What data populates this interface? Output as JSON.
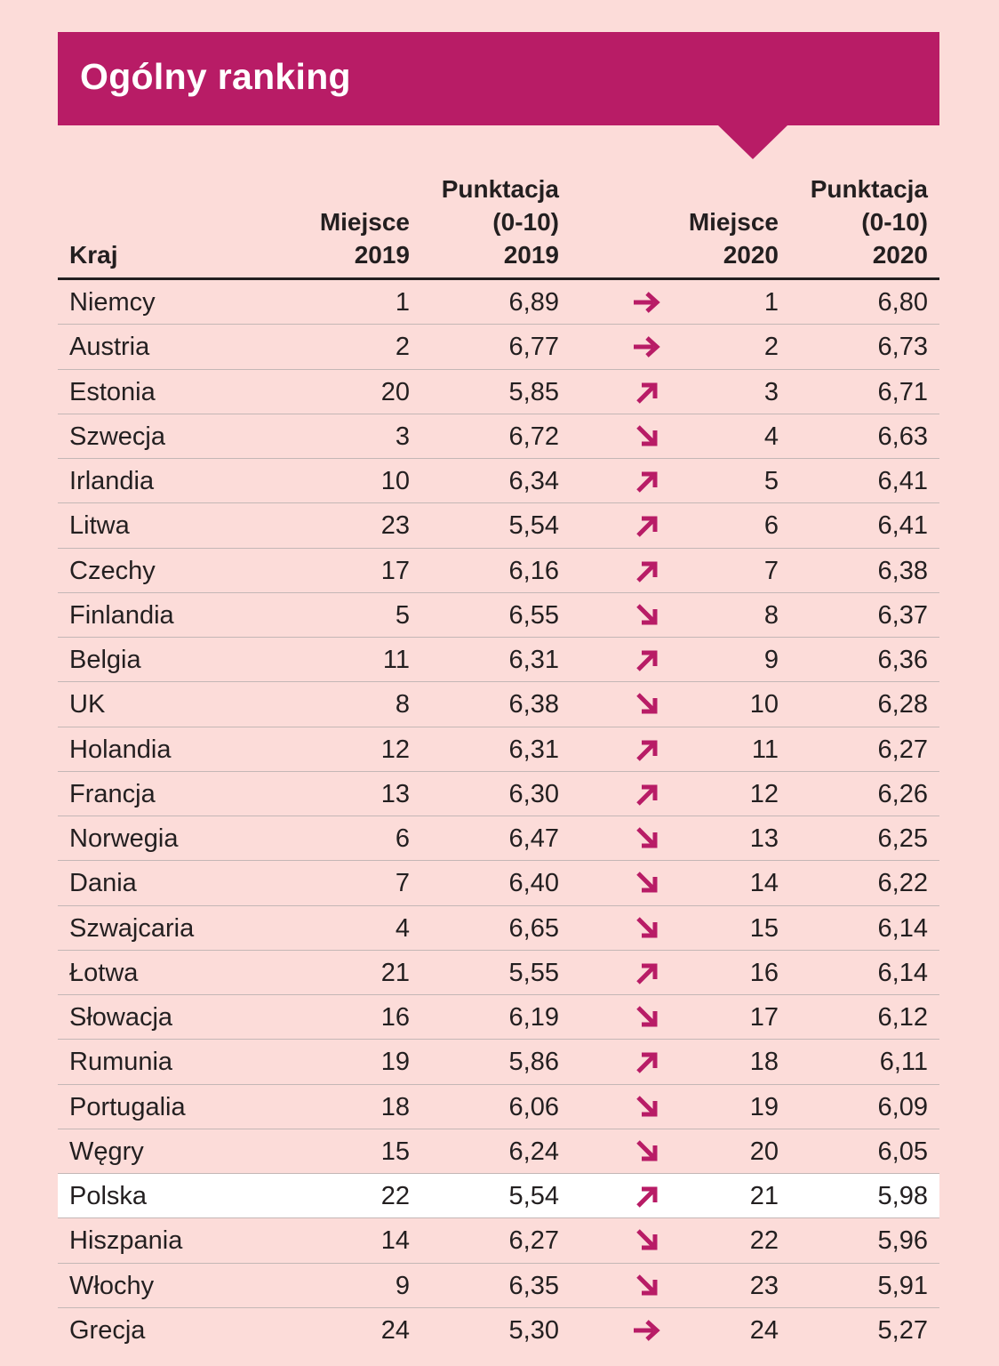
{
  "title": "Ogólny ranking",
  "colors": {
    "accent": "#b81c66",
    "background": "#fcdcd9",
    "highlight_row": "#ffffff",
    "text": "#231f20"
  },
  "headers": {
    "country": "Kraj",
    "rank_2019": [
      "Miejsce",
      "2019"
    ],
    "score_2019": [
      "Punktacja",
      "(0-10)",
      "2019"
    ],
    "rank_2020": [
      "Miejsce",
      "2020"
    ],
    "score_2020": [
      "Punktacja",
      "(0-10)",
      "2020"
    ]
  },
  "highlighted_country": "Polska",
  "chart_data": {
    "type": "table",
    "title": "Ogólny ranking",
    "columns": [
      "Kraj",
      "Miejsce 2019",
      "Punktacja (0-10) 2019",
      "Miejsce 2020",
      "Punktacja (0-10) 2020"
    ],
    "rows": [
      {
        "country": "Niemcy",
        "rank_2019": "1",
        "score_2019": "6,89",
        "trend": "same",
        "rank_2020": "1",
        "score_2020": "6,80"
      },
      {
        "country": "Austria",
        "rank_2019": "2",
        "score_2019": "6,77",
        "trend": "same",
        "rank_2020": "2",
        "score_2020": "6,73"
      },
      {
        "country": "Estonia",
        "rank_2019": "20",
        "score_2019": "5,85",
        "trend": "up",
        "rank_2020": "3",
        "score_2020": "6,71"
      },
      {
        "country": "Szwecja",
        "rank_2019": "3",
        "score_2019": "6,72",
        "trend": "down",
        "rank_2020": "4",
        "score_2020": "6,63"
      },
      {
        "country": "Irlandia",
        "rank_2019": "10",
        "score_2019": "6,34",
        "trend": "up",
        "rank_2020": "5",
        "score_2020": "6,41"
      },
      {
        "country": "Litwa",
        "rank_2019": "23",
        "score_2019": "5,54",
        "trend": "up",
        "rank_2020": "6",
        "score_2020": "6,41"
      },
      {
        "country": "Czechy",
        "rank_2019": "17",
        "score_2019": "6,16",
        "trend": "up",
        "rank_2020": "7",
        "score_2020": "6,38"
      },
      {
        "country": "Finlandia",
        "rank_2019": "5",
        "score_2019": "6,55",
        "trend": "down",
        "rank_2020": "8",
        "score_2020": "6,37"
      },
      {
        "country": "Belgia",
        "rank_2019": "11",
        "score_2019": "6,31",
        "trend": "up",
        "rank_2020": "9",
        "score_2020": "6,36"
      },
      {
        "country": "UK",
        "rank_2019": "8",
        "score_2019": "6,38",
        "trend": "down",
        "rank_2020": "10",
        "score_2020": "6,28"
      },
      {
        "country": "Holandia",
        "rank_2019": "12",
        "score_2019": "6,31",
        "trend": "up",
        "rank_2020": "11",
        "score_2020": "6,27"
      },
      {
        "country": "Francja",
        "rank_2019": "13",
        "score_2019": "6,30",
        "trend": "up",
        "rank_2020": "12",
        "score_2020": "6,26"
      },
      {
        "country": "Norwegia",
        "rank_2019": "6",
        "score_2019": "6,47",
        "trend": "down",
        "rank_2020": "13",
        "score_2020": "6,25"
      },
      {
        "country": "Dania",
        "rank_2019": "7",
        "score_2019": "6,40",
        "trend": "down",
        "rank_2020": "14",
        "score_2020": "6,22"
      },
      {
        "country": "Szwajcaria",
        "rank_2019": "4",
        "score_2019": "6,65",
        "trend": "down",
        "rank_2020": "15",
        "score_2020": "6,14"
      },
      {
        "country": "Łotwa",
        "rank_2019": "21",
        "score_2019": "5,55",
        "trend": "up",
        "rank_2020": "16",
        "score_2020": "6,14"
      },
      {
        "country": "Słowacja",
        "rank_2019": "16",
        "score_2019": "6,19",
        "trend": "down",
        "rank_2020": "17",
        "score_2020": "6,12"
      },
      {
        "country": "Rumunia",
        "rank_2019": "19",
        "score_2019": "5,86",
        "trend": "up",
        "rank_2020": "18",
        "score_2020": "6,11"
      },
      {
        "country": "Portugalia",
        "rank_2019": "18",
        "score_2019": "6,06",
        "trend": "down",
        "rank_2020": "19",
        "score_2020": "6,09"
      },
      {
        "country": "Węgry",
        "rank_2019": "15",
        "score_2019": "6,24",
        "trend": "down",
        "rank_2020": "20",
        "score_2020": "6,05"
      },
      {
        "country": "Polska",
        "rank_2019": "22",
        "score_2019": "5,54",
        "trend": "up",
        "rank_2020": "21",
        "score_2020": "5,98"
      },
      {
        "country": "Hiszpania",
        "rank_2019": "14",
        "score_2019": "6,27",
        "trend": "down",
        "rank_2020": "22",
        "score_2020": "5,96"
      },
      {
        "country": "Włochy",
        "rank_2019": "9",
        "score_2019": "6,35",
        "trend": "down",
        "rank_2020": "23",
        "score_2020": "5,91"
      },
      {
        "country": "Grecja",
        "rank_2019": "24",
        "score_2019": "5,30",
        "trend": "same",
        "rank_2020": "24",
        "score_2020": "5,27"
      }
    ]
  }
}
